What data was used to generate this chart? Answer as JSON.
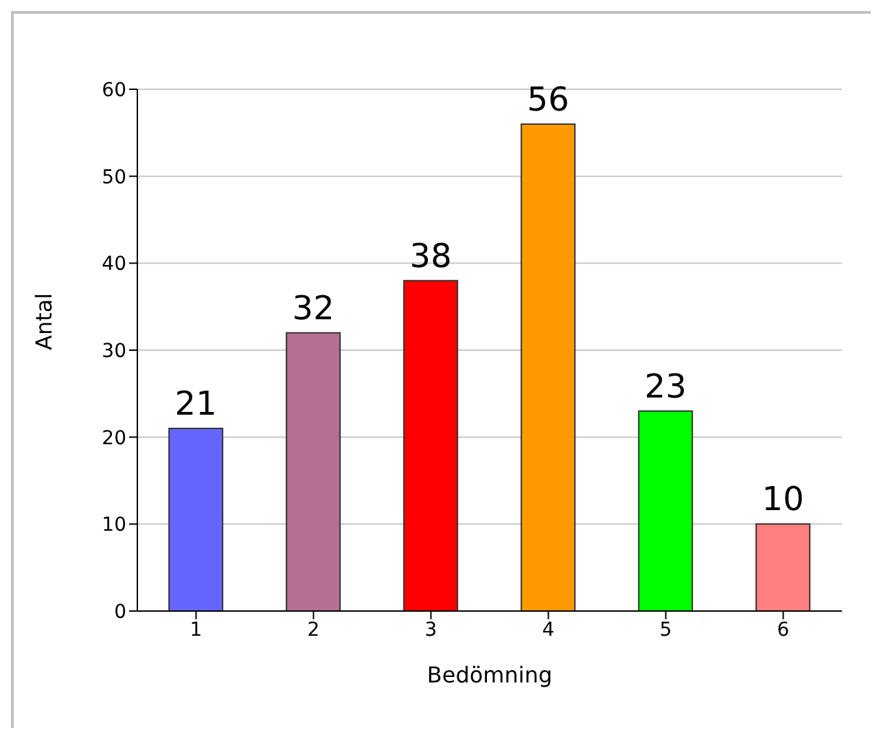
{
  "chart_data": {
    "type": "bar",
    "xlabel": "Bedömning",
    "ylabel": "Antal",
    "categories": [
      "1",
      "2",
      "3",
      "4",
      "5",
      "6"
    ],
    "values": [
      21,
      32,
      38,
      56,
      23,
      10
    ],
    "colors": [
      "#6666ff",
      "#b56f93",
      "#ff0000",
      "#ff9900",
      "#00ff00",
      "#ff8080"
    ],
    "ylim": [
      0,
      60
    ],
    "yticks": [
      0,
      10,
      20,
      30,
      40,
      50,
      60
    ],
    "grid": "y",
    "data_labels": true,
    "legend": false
  }
}
